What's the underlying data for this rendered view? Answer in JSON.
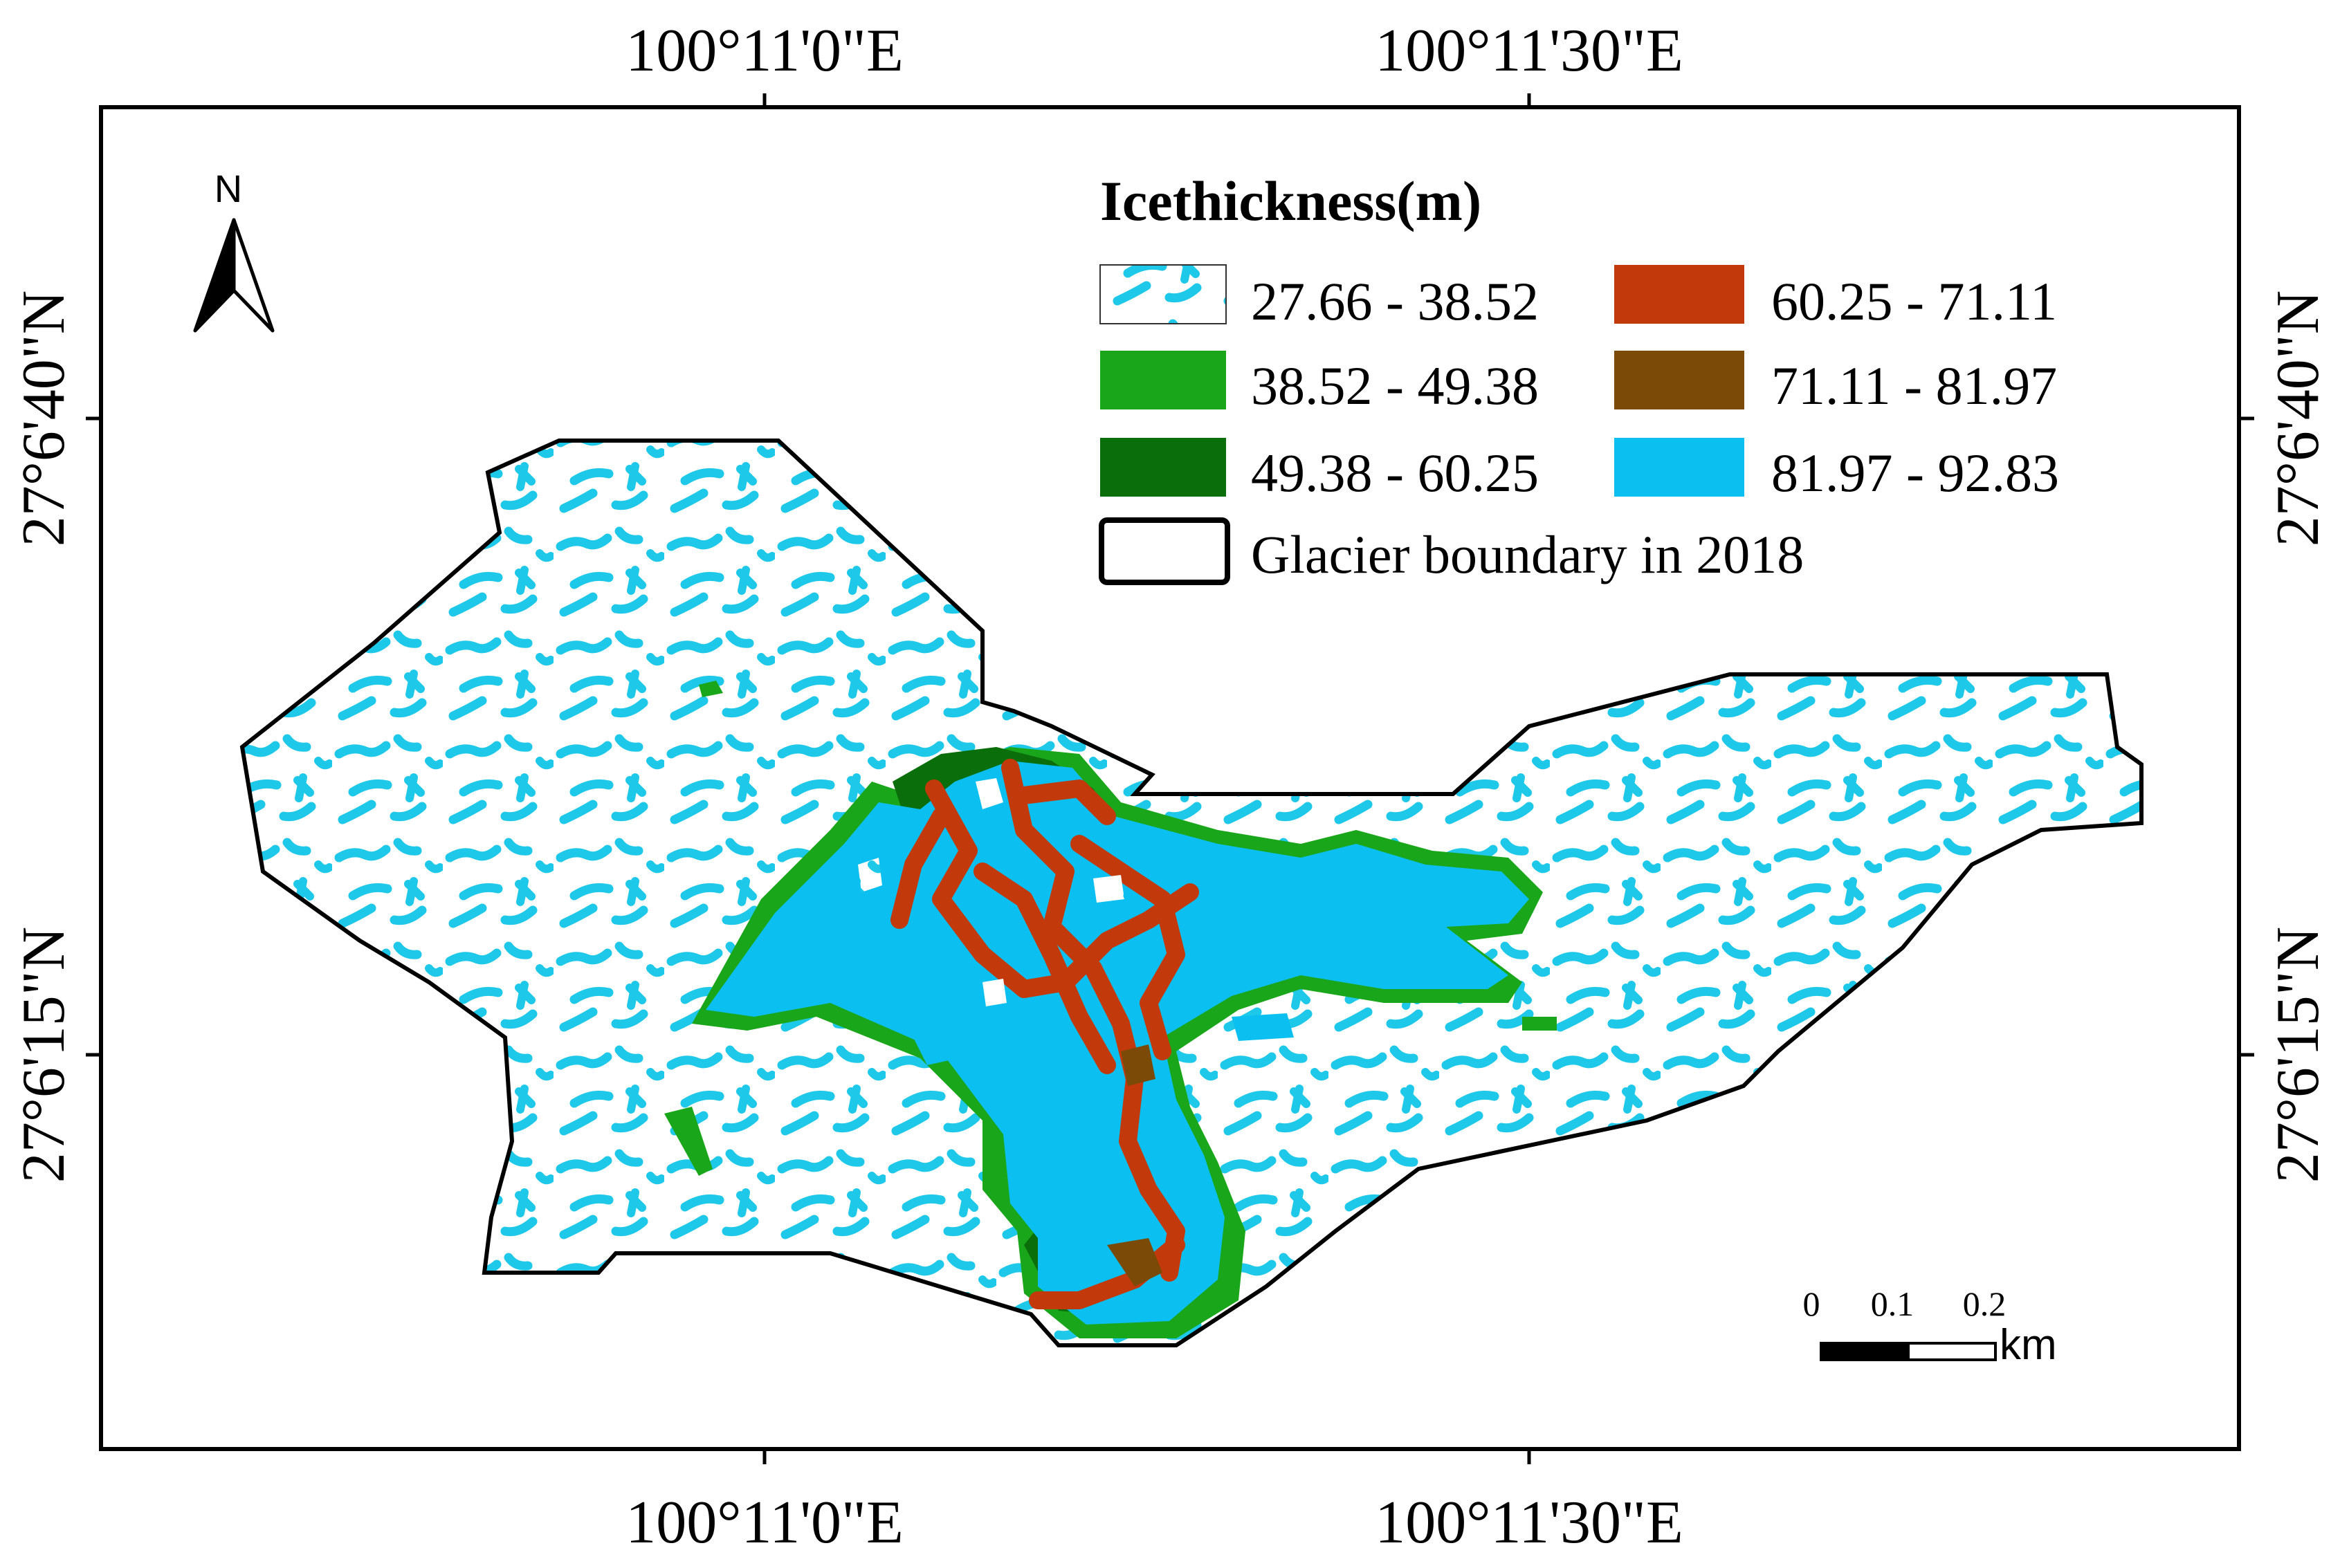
{
  "axes": {
    "top_labels": [
      "100°11'0\"E",
      "100°11'30\"E"
    ],
    "bottom_labels": [
      "100°11'0\"E",
      "100°11'30\"E"
    ],
    "left_labels": [
      "27°6'40\"N",
      "27°6'15\"N"
    ],
    "right_labels": [
      "27°6'40\"N",
      "27°6'15\"N"
    ]
  },
  "north_arrow": {
    "label": "N",
    "icon": "north-arrow-icon"
  },
  "legend": {
    "title": "Icethickness(m)",
    "classes": [
      {
        "label": "27.66 - 38.52",
        "color": "#FFFFFF",
        "pattern": "cyan-speckle",
        "pattern_color": "#1EC8E8"
      },
      {
        "label": "38.52 - 49.38",
        "color": "#1AA61A"
      },
      {
        "label": "49.38 - 60.25",
        "color": "#0A6E0A"
      },
      {
        "label": "60.25 - 71.11",
        "color": "#C23A0C"
      },
      {
        "label": "71.11 - 81.97",
        "color": "#7A4A06"
      },
      {
        "label": "81.97 - 92.83",
        "color": "#0BC0F0"
      }
    ],
    "boundary_label": "Glacier boundary in 2018",
    "boundary_color": "#000000"
  },
  "scale_bar": {
    "ticks": [
      "0",
      "0.1",
      "0.2"
    ],
    "unit": "km"
  }
}
